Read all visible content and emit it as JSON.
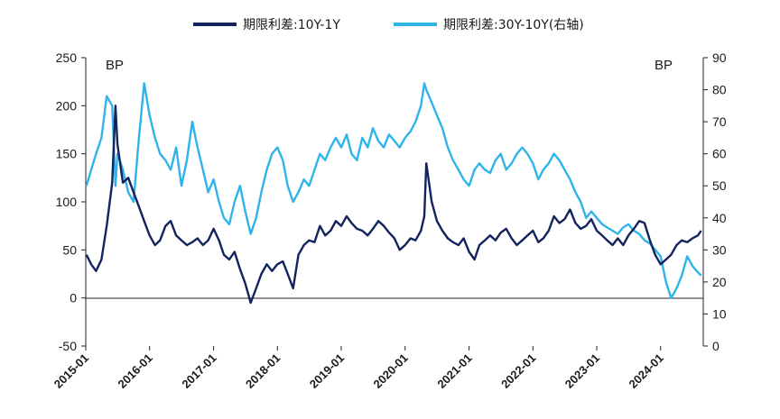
{
  "chart_data": {
    "type": "line",
    "title": "",
    "legend_position": "top",
    "grid": false,
    "series": [
      {
        "name": "期限利差:10Y-1Y",
        "axis": "left",
        "color": "#12235e",
        "x": [
          "2015-01-05",
          "2015-02-01",
          "2015-03-01",
          "2015-04-01",
          "2015-05-01",
          "2015-06-01",
          "2015-06-20",
          "2015-07-01",
          "2015-08-01",
          "2015-09-01",
          "2015-10-01",
          "2015-11-01",
          "2015-12-01",
          "2016-01-01",
          "2016-02-01",
          "2016-03-01",
          "2016-04-01",
          "2016-05-01",
          "2016-06-01",
          "2016-07-01",
          "2016-08-01",
          "2016-09-01",
          "2016-10-01",
          "2016-11-01",
          "2016-12-01",
          "2017-01-01",
          "2017-02-01",
          "2017-03-01",
          "2017-04-01",
          "2017-05-01",
          "2017-06-01",
          "2017-07-01",
          "2017-08-01",
          "2017-09-01",
          "2017-10-01",
          "2017-11-01",
          "2017-12-01",
          "2018-01-01",
          "2018-02-01",
          "2018-03-01",
          "2018-04-01",
          "2018-05-01",
          "2018-06-01",
          "2018-07-01",
          "2018-08-01",
          "2018-09-01",
          "2018-10-01",
          "2018-11-01",
          "2018-12-01",
          "2019-01-01",
          "2019-02-01",
          "2019-03-01",
          "2019-04-01",
          "2019-05-01",
          "2019-06-01",
          "2019-07-01",
          "2019-08-01",
          "2019-09-01",
          "2019-10-01",
          "2019-11-01",
          "2019-12-01",
          "2020-01-01",
          "2020-02-01",
          "2020-03-01",
          "2020-04-01",
          "2020-04-20",
          "2020-05-01",
          "2020-06-01",
          "2020-07-01",
          "2020-08-01",
          "2020-09-01",
          "2020-10-01",
          "2020-11-01",
          "2020-12-01",
          "2021-01-01",
          "2021-02-01",
          "2021-03-01",
          "2021-04-01",
          "2021-05-01",
          "2021-06-01",
          "2021-07-01",
          "2021-08-01",
          "2021-09-01",
          "2021-10-01",
          "2021-11-01",
          "2021-12-01",
          "2022-01-01",
          "2022-02-01",
          "2022-03-01",
          "2022-04-01",
          "2022-05-01",
          "2022-06-01",
          "2022-07-01",
          "2022-08-01",
          "2022-09-01",
          "2022-10-01",
          "2022-11-01",
          "2022-12-01",
          "2023-01-01",
          "2023-02-01",
          "2023-03-01",
          "2023-04-01",
          "2023-05-01",
          "2023-06-01",
          "2023-07-01",
          "2023-08-01",
          "2023-09-01",
          "2023-10-01",
          "2023-11-01",
          "2023-12-01",
          "2024-01-01",
          "2024-02-01",
          "2024-03-01",
          "2024-04-01",
          "2024-05-01",
          "2024-06-01",
          "2024-07-01",
          "2024-08-01",
          "2024-08-20"
        ],
        "y": [
          45,
          35,
          28,
          40,
          75,
          120,
          200,
          160,
          120,
          125,
          110,
          95,
          80,
          65,
          55,
          60,
          75,
          80,
          65,
          60,
          55,
          58,
          62,
          55,
          60,
          72,
          60,
          45,
          40,
          48,
          30,
          15,
          -5,
          10,
          25,
          35,
          28,
          35,
          38,
          25,
          10,
          45,
          55,
          60,
          58,
          75,
          65,
          70,
          80,
          75,
          85,
          78,
          72,
          70,
          65,
          72,
          80,
          75,
          68,
          62,
          50,
          55,
          62,
          60,
          70,
          85,
          140,
          100,
          80,
          70,
          62,
          58,
          55,
          62,
          48,
          40,
          55,
          60,
          65,
          60,
          68,
          72,
          62,
          55,
          60,
          65,
          70,
          58,
          62,
          70,
          85,
          78,
          82,
          92,
          78,
          72,
          75,
          82,
          70,
          65,
          60,
          55,
          62,
          55,
          65,
          72,
          80,
          78,
          60,
          45,
          35,
          40,
          45,
          55,
          60,
          58,
          62,
          65,
          70
        ]
      },
      {
        "name": "期限利差:30Y-10Y(右轴)",
        "axis": "right",
        "color": "#2fb4ea",
        "x": [
          "2015-01-05",
          "2015-02-01",
          "2015-03-01",
          "2015-04-01",
          "2015-05-01",
          "2015-06-01",
          "2015-06-20",
          "2015-07-01",
          "2015-08-01",
          "2015-09-01",
          "2015-10-01",
          "2015-11-01",
          "2015-12-01",
          "2016-01-01",
          "2016-02-01",
          "2016-03-01",
          "2016-04-01",
          "2016-05-01",
          "2016-06-01",
          "2016-07-01",
          "2016-08-01",
          "2016-09-01",
          "2016-10-01",
          "2016-11-01",
          "2016-12-01",
          "2017-01-01",
          "2017-02-01",
          "2017-03-01",
          "2017-04-01",
          "2017-05-01",
          "2017-06-01",
          "2017-07-01",
          "2017-08-01",
          "2017-09-01",
          "2017-10-01",
          "2017-11-01",
          "2017-12-01",
          "2018-01-01",
          "2018-02-01",
          "2018-03-01",
          "2018-04-01",
          "2018-05-01",
          "2018-06-01",
          "2018-07-01",
          "2018-08-01",
          "2018-09-01",
          "2018-10-01",
          "2018-11-01",
          "2018-12-01",
          "2019-01-01",
          "2019-02-01",
          "2019-03-01",
          "2019-04-01",
          "2019-05-01",
          "2019-06-01",
          "2019-07-01",
          "2019-08-01",
          "2019-09-01",
          "2019-10-01",
          "2019-11-01",
          "2019-12-01",
          "2020-01-01",
          "2020-02-01",
          "2020-03-01",
          "2020-04-01",
          "2020-04-20",
          "2020-05-01",
          "2020-06-01",
          "2020-07-01",
          "2020-08-01",
          "2020-09-01",
          "2020-10-01",
          "2020-11-01",
          "2020-12-01",
          "2021-01-01",
          "2021-02-01",
          "2021-03-01",
          "2021-04-01",
          "2021-05-01",
          "2021-06-01",
          "2021-07-01",
          "2021-08-01",
          "2021-09-01",
          "2021-10-01",
          "2021-11-01",
          "2021-12-01",
          "2022-01-01",
          "2022-02-01",
          "2022-03-01",
          "2022-04-01",
          "2022-05-01",
          "2022-06-01",
          "2022-07-01",
          "2022-08-01",
          "2022-09-01",
          "2022-10-01",
          "2022-11-01",
          "2022-12-01",
          "2023-01-01",
          "2023-02-01",
          "2023-03-01",
          "2023-04-01",
          "2023-05-01",
          "2023-06-01",
          "2023-07-01",
          "2023-08-01",
          "2023-09-01",
          "2023-10-01",
          "2023-11-01",
          "2023-12-01",
          "2024-01-01",
          "2024-02-01",
          "2024-03-01",
          "2024-04-01",
          "2024-05-01",
          "2024-06-01",
          "2024-07-01",
          "2024-08-01",
          "2024-08-20"
        ],
        "y": [
          50,
          55,
          60,
          65,
          78,
          75,
          50,
          60,
          55,
          48,
          45,
          65,
          82,
          72,
          65,
          60,
          58,
          55,
          62,
          50,
          58,
          70,
          62,
          55,
          48,
          52,
          45,
          40,
          38,
          45,
          50,
          42,
          35,
          40,
          48,
          55,
          60,
          62,
          58,
          50,
          45,
          48,
          52,
          50,
          55,
          60,
          58,
          62,
          65,
          62,
          66,
          60,
          58,
          65,
          62,
          68,
          64,
          62,
          66,
          64,
          62,
          65,
          67,
          70,
          75,
          82,
          80,
          76,
          72,
          68,
          62,
          58,
          55,
          52,
          50,
          55,
          57,
          55,
          54,
          58,
          60,
          55,
          57,
          60,
          62,
          60,
          57,
          52,
          55,
          57,
          60,
          58,
          55,
          52,
          48,
          45,
          40,
          42,
          40,
          38,
          37,
          36,
          35,
          37,
          38,
          36,
          35,
          33,
          32,
          30,
          28,
          20,
          15,
          18,
          22,
          28,
          25,
          23,
          22
        ]
      }
    ],
    "x_ticks": [
      "2015-01",
      "2016-01",
      "2017-01",
      "2018-01",
      "2019-01",
      "2020-01",
      "2021-01",
      "2022-01",
      "2023-01",
      "2024-01"
    ],
    "y_left": {
      "ticks": [
        250,
        200,
        150,
        100,
        50,
        0,
        -50
      ],
      "range": [
        -50,
        250
      ],
      "unit_label": "BP"
    },
    "y_right": {
      "ticks": [
        90,
        80,
        70,
        60,
        50,
        40,
        30,
        20,
        10,
        0
      ],
      "range": [
        0,
        90
      ],
      "unit_label": "BP"
    },
    "x_range": [
      "2015-01-01",
      "2024-09-01"
    ]
  }
}
